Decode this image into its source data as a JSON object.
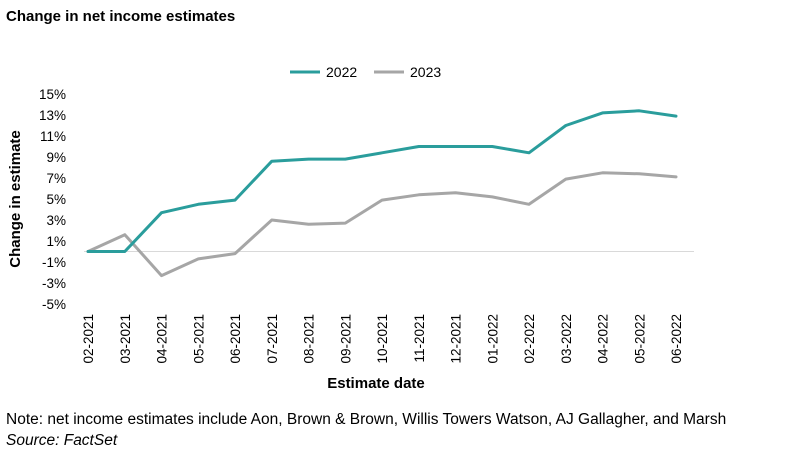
{
  "chart_data": {
    "type": "line",
    "title": "Change in net income estimates",
    "xlabel": "Estimate date",
    "ylabel": "Change in estimate",
    "categories": [
      "02-2021",
      "03-2021",
      "04-2021",
      "05-2021",
      "06-2021",
      "07-2021",
      "08-2021",
      "09-2021",
      "10-2021",
      "11-2021",
      "12-2021",
      "01-2022",
      "02-2022",
      "03-2022",
      "04-2022",
      "05-2022",
      "06-2022"
    ],
    "series": [
      {
        "name": "2022",
        "color": "#2a9d9c",
        "values": [
          0.0,
          0.0,
          3.7,
          4.5,
          4.9,
          8.6,
          8.8,
          8.8,
          9.4,
          10.0,
          10.0,
          10.0,
          9.4,
          12.0,
          13.2,
          13.4,
          12.9
        ]
      },
      {
        "name": "2023",
        "color": "#a6a6a6",
        "values": [
          0.0,
          1.6,
          -2.3,
          -0.7,
          -0.2,
          3.0,
          2.6,
          2.7,
          4.9,
          5.4,
          5.6,
          5.2,
          4.5,
          6.9,
          7.5,
          7.4,
          7.1
        ]
      }
    ],
    "ylim": [
      -5,
      15
    ],
    "yticks": [
      15,
      13,
      11,
      9,
      7,
      5,
      3,
      1,
      -1,
      -3,
      -5
    ],
    "ytick_labels": [
      "15%",
      "13%",
      "11%",
      "9%",
      "7%",
      "5%",
      "3%",
      "1%",
      "-1%",
      "-3%",
      "-5%"
    ],
    "legend": "top-center",
    "grid": false
  },
  "footer": {
    "note": "Note: net income estimates include Aon, Brown & Brown, Willis Towers Watson, AJ Gallagher, and Marsh",
    "source": "Source: FactSet"
  }
}
